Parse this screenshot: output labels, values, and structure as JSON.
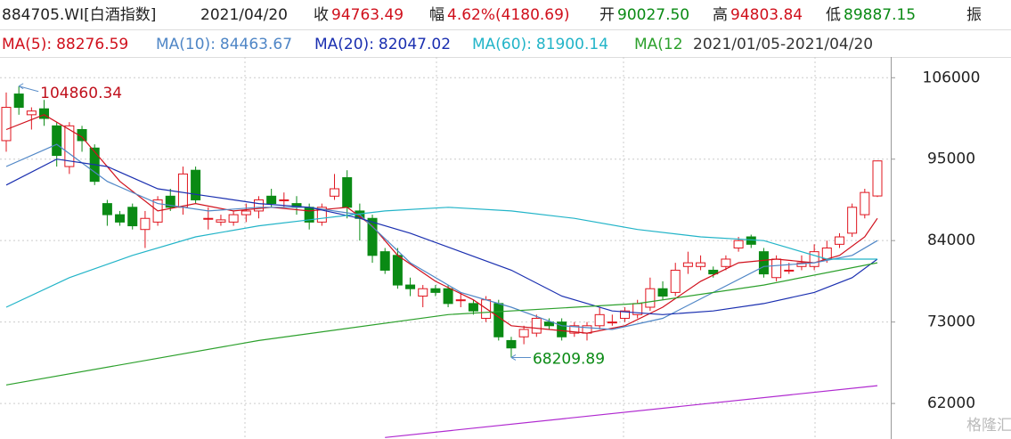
{
  "header": {
    "code": "884705.WI[白酒指数]",
    "date": "2021/04/20",
    "close_label": "收",
    "close": "94763.49",
    "change_label": "幅",
    "change": "4.62%(4180.69)",
    "open_label": "开",
    "open": "90027.50",
    "high_label": "高",
    "high": "94803.84",
    "low_label": "低",
    "low": "89887.15",
    "amp_label": "振"
  },
  "chart_data": {
    "type": "candlestick",
    "range_label": "2021/01/05-2021/04/20",
    "watermark": "格隆汇",
    "ylim": [
      57200,
      108800
    ],
    "yticks": [
      62000,
      73000,
      84000,
      95000,
      106000
    ],
    "grid": true,
    "up_color": "#e0141e",
    "down_color": "#0a8a14",
    "high_annotation": 104860.34,
    "low_annotation": 68209.89,
    "open": [
      97500,
      103800,
      101000,
      101800,
      99500,
      94000,
      99000,
      96500,
      89000,
      87500,
      88500,
      85500,
      86500,
      90000,
      88500,
      93500,
      87000,
      86500,
      86500,
      87500,
      88000,
      90000,
      89500,
      89000,
      88500,
      86500,
      90000,
      92500,
      88000,
      87000,
      82500,
      82000,
      78000,
      76500,
      77500,
      77500,
      76000,
      75500,
      73500,
      75500,
      70500,
      71000,
      71500,
      73000,
      73000,
      71500,
      71500,
      72500,
      73000,
      73500,
      74000,
      75000,
      77500,
      77000,
      80500,
      80500,
      80000,
      80500,
      83000,
      84500,
      82500,
      79000,
      80000,
      80500,
      80500,
      81500,
      83500,
      85000,
      87500,
      90027.5
    ],
    "high": [
      104000,
      104860.34,
      102000,
      103000,
      100000,
      100000,
      99500,
      97000,
      89500,
      88000,
      89000,
      88000,
      90000,
      91000,
      94000,
      94000,
      88500,
      87500,
      88000,
      89000,
      90000,
      91000,
      90500,
      90000,
      89000,
      89000,
      93000,
      93500,
      89000,
      87500,
      83000,
      83000,
      79000,
      78000,
      78000,
      78000,
      77000,
      76000,
      76500,
      76000,
      71000,
      72500,
      74000,
      73500,
      73500,
      73000,
      73000,
      75000,
      74000,
      75000,
      76000,
      79000,
      78500,
      81000,
      82500,
      82000,
      80500,
      82000,
      84500,
      84800,
      83000,
      82000,
      81000,
      82000,
      83500,
      84000,
      85000,
      89000,
      91000,
      94803.84
    ],
    "low": [
      96000,
      101000,
      99000,
      99500,
      94000,
      93000,
      96000,
      91500,
      86000,
      86000,
      85500,
      83000,
      86000,
      88000,
      87500,
      89000,
      85500,
      86000,
      86000,
      86500,
      87000,
      88500,
      88500,
      87500,
      85500,
      86000,
      89500,
      87000,
      84000,
      81000,
      79500,
      77500,
      76500,
      75000,
      76500,
      75000,
      75000,
      74000,
      73000,
      70500,
      68209.89,
      70000,
      71000,
      72000,
      70500,
      71000,
      70500,
      72000,
      72500,
      73000,
      73500,
      74500,
      76000,
      76500,
      79500,
      80000,
      79000,
      80000,
      82500,
      83000,
      79000,
      78500,
      79500,
      80000,
      80000,
      81000,
      83000,
      84500,
      87000,
      89887.15
    ],
    "close": [
      102000,
      102000,
      101500,
      100500,
      95500,
      99500,
      97500,
      92000,
      87500,
      86500,
      86000,
      87000,
      89500,
      88500,
      93000,
      89500,
      87000,
      86800,
      87500,
      88000,
      89500,
      89000,
      89500,
      88500,
      86500,
      88500,
      91000,
      88500,
      87000,
      82000,
      80000,
      78000,
      77500,
      77500,
      77000,
      75500,
      76000,
      74500,
      76000,
      71000,
      69500,
      72000,
      73500,
      72500,
      71000,
      72500,
      72500,
      74000,
      73000,
      74500,
      75500,
      77500,
      76500,
      80000,
      81000,
      81000,
      79500,
      81500,
      84000,
      83500,
      79500,
      81500,
      80000,
      81000,
      82500,
      83000,
      84500,
      88500,
      90500,
      94763.49
    ],
    "series": [
      {
        "name": "MA(5):",
        "current": 88276.59,
        "color": "#d0101c",
        "x": [
          0,
          3,
          6,
          9,
          12,
          15,
          18,
          21,
          24,
          27,
          29,
          31,
          34,
          37,
          40,
          43,
          46,
          49,
          52,
          55,
          58,
          61,
          64,
          66,
          68,
          69
        ],
        "values": [
          99000,
          101000,
          98000,
          92000,
          88000,
          89000,
          88000,
          88500,
          88000,
          88500,
          86000,
          82000,
          78500,
          76000,
          72500,
          72000,
          71500,
          72500,
          75000,
          78500,
          81000,
          81500,
          81000,
          82000,
          84500,
          87000
        ]
      },
      {
        "name": "MA(10):",
        "current": 84463.67,
        "color": "#4f86c6",
        "x": [
          0,
          4,
          8,
          12,
          16,
          20,
          24,
          28,
          32,
          36,
          40,
          44,
          48,
          52,
          56,
          60,
          64,
          67,
          69
        ],
        "values": [
          94000,
          97000,
          92000,
          89000,
          88000,
          88500,
          88500,
          87500,
          81000,
          77000,
          75000,
          72500,
          72000,
          73500,
          77000,
          80500,
          81000,
          82000,
          84000
        ]
      },
      {
        "name": "MA(20):",
        "current": 82047.02,
        "color": "#1a2fb0",
        "x": [
          0,
          4,
          8,
          12,
          16,
          20,
          24,
          28,
          32,
          36,
          40,
          44,
          48,
          52,
          56,
          60,
          64,
          67,
          69
        ],
        "values": [
          91500,
          95000,
          94000,
          91000,
          90000,
          89000,
          88500,
          87000,
          85000,
          82500,
          80000,
          76500,
          74500,
          74000,
          74500,
          75500,
          77000,
          79000,
          81500
        ]
      },
      {
        "name": "MA(60):",
        "current": 81900.14,
        "color": "#22b4c8",
        "x": [
          0,
          5,
          10,
          15,
          20,
          25,
          30,
          35,
          40,
          45,
          50,
          55,
          60,
          65,
          69
        ],
        "values": [
          75000,
          79000,
          82000,
          84500,
          86000,
          87000,
          88000,
          88500,
          88000,
          87000,
          85500,
          84500,
          84000,
          81500,
          81500
        ]
      },
      {
        "name": "MA(12",
        "color": "#2ca02c",
        "x": [
          0,
          20,
          35,
          50,
          60,
          69
        ],
        "values": [
          64500,
          70500,
          74000,
          75500,
          78000,
          81000
        ]
      },
      {
        "color": "#b02ad0",
        "x": [
          30,
          69
        ],
        "values": [
          57400,
          64400
        ]
      }
    ]
  }
}
